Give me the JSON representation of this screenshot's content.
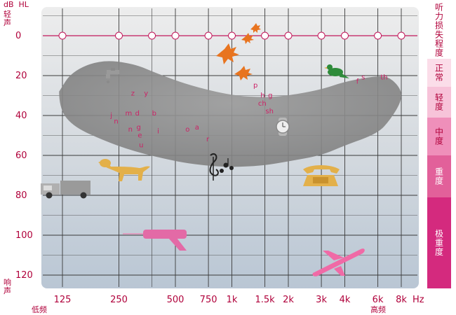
{
  "chart_data": {
    "type": "audiogram",
    "y_unit_top": "dB  HL",
    "y_label_top": "轻\n声",
    "y_label_bottom": "响\n声",
    "x_label_low": "低频",
    "x_label_high": "高频",
    "x_unit": "Hz",
    "x_ticks": [
      {
        "label": "125",
        "hz": 125
      },
      {
        "label": "250",
        "hz": 250
      },
      {
        "label": "500",
        "hz": 500
      },
      {
        "label": "750",
        "hz": 750
      },
      {
        "label": "1k",
        "hz": 1000
      },
      {
        "label": "1.5k",
        "hz": 1500
      },
      {
        "label": "2k",
        "hz": 2000
      },
      {
        "label": "3k",
        "hz": 3000
      },
      {
        "label": "4k",
        "hz": 4000
      },
      {
        "label": "6k",
        "hz": 6000
      },
      {
        "label": "8k",
        "hz": 8000
      }
    ],
    "y_ticks": [
      0,
      20,
      40,
      60,
      80,
      100,
      120
    ],
    "ylim": [
      -15,
      128
    ],
    "threshold_line": {
      "db": 0,
      "points_hz": [
        125,
        250,
        375,
        500,
        750,
        1000,
        1500,
        2000,
        3000,
        4000,
        6000,
        8000
      ]
    },
    "speech_banana": {
      "upper": [
        [
          120,
          28
        ],
        [
          140,
          18
        ],
        [
          200,
          12
        ],
        [
          300,
          14
        ],
        [
          400,
          19
        ],
        [
          600,
          25
        ],
        [
          1000,
          30
        ],
        [
          1500,
          31
        ],
        [
          2000,
          30
        ],
        [
          3000,
          27
        ],
        [
          4000,
          23
        ],
        [
          6000,
          20
        ],
        [
          7000,
          21
        ],
        [
          8000,
          27
        ]
      ],
      "lower": [
        [
          8000,
          33
        ],
        [
          7000,
          42
        ],
        [
          6000,
          49
        ],
        [
          4000,
          55
        ],
        [
          3000,
          60
        ],
        [
          2000,
          63
        ],
        [
          1500,
          65
        ],
        [
          1000,
          66
        ],
        [
          700,
          65
        ],
        [
          500,
          63
        ],
        [
          300,
          58
        ],
        [
          200,
          52
        ],
        [
          140,
          45
        ],
        [
          120,
          36
        ]
      ]
    },
    "phonemes": [
      {
        "t": "z",
        "hz": 290,
        "db": 30
      },
      {
        "t": "y",
        "hz": 340,
        "db": 30
      },
      {
        "t": "j",
        "hz": 225,
        "db": 41
      },
      {
        "t": "m",
        "hz": 270,
        "db": 40
      },
      {
        "t": "d",
        "hz": 305,
        "db": 40
      },
      {
        "t": "b",
        "hz": 375,
        "db": 40
      },
      {
        "t": "n",
        "hz": 235,
        "db": 44
      },
      {
        "t": "n",
        "hz": 280,
        "db": 48
      },
      {
        "t": "g",
        "hz": 310,
        "db": 47
      },
      {
        "t": "e",
        "hz": 315,
        "db": 51
      },
      {
        "t": "i",
        "hz": 400,
        "db": 49
      },
      {
        "t": "o",
        "hz": 565,
        "db": 48
      },
      {
        "t": "a",
        "hz": 635,
        "db": 47
      },
      {
        "t": "u",
        "hz": 320,
        "db": 56
      },
      {
        "t": "r",
        "hz": 730,
        "db": 53
      },
      {
        "t": "p",
        "hz": 1300,
        "db": 26
      },
      {
        "t": "h",
        "hz": 1420,
        "db": 31
      },
      {
        "t": "g",
        "hz": 1560,
        "db": 31
      },
      {
        "t": "ch",
        "hz": 1380,
        "db": 35
      },
      {
        "t": "sh",
        "hz": 1510,
        "db": 39
      },
      {
        "t": "f",
        "hz": 4600,
        "db": 24
      },
      {
        "t": "s",
        "hz": 4900,
        "db": 22
      },
      {
        "t": "th",
        "hz": 6200,
        "db": 22
      }
    ],
    "hearing_levels": [
      "听力损失程度",
      "正常",
      "轻度",
      "中度",
      "重度",
      "极重度"
    ],
    "sound_icons": [
      "dripping-faucet-icon",
      "autumn-leaves-icon",
      "bird-icon",
      "watch-icon",
      "music-icon",
      "dog-icon",
      "telephone-icon",
      "truck-icon",
      "power-drill-icon",
      "airplane-icon"
    ],
    "colors": {
      "axis_text": "#b0003a",
      "plot_bg_top": "#ececec",
      "plot_bg_bottom": "#bcc9d6",
      "grid": "#3a3a3a",
      "banana": "#8c8c8c",
      "threshold": "#c2185b",
      "phoneme": "#cc2266"
    }
  }
}
